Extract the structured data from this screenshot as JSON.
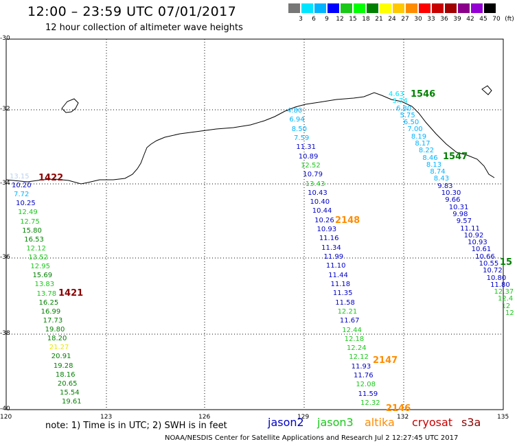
{
  "header": {
    "title": "12:00 – 23:59 UTC 07/01/2017",
    "subtitle": "12 hour collection of altimeter wave heights"
  },
  "color_scale": {
    "labels": [
      "3",
      "6",
      "9",
      "12",
      "15",
      "18",
      "21",
      "24",
      "27",
      "30",
      "33",
      "36",
      "39",
      "42",
      "45",
      "70",
      "(ft)"
    ],
    "colors": [
      "#777777",
      "#00e5ff",
      "#00b4ff",
      "#0000ff",
      "#19c819",
      "#00ff00",
      "#008000",
      "#ffff00",
      "#ffc800",
      "#ff8c00",
      "#ff0000",
      "#c80000",
      "#a00000",
      "#8b008b",
      "#9400d3",
      "#000000"
    ]
  },
  "map": {
    "lat_labels": [
      "-30",
      "-32",
      "-34",
      "-36",
      "-38",
      "-40"
    ],
    "lon_labels": [
      "120",
      "123",
      "126",
      "129",
      "132",
      "135"
    ]
  },
  "tracks": [
    {
      "color": "#8b0000",
      "id": "1422",
      "labels": [
        {
          "t": "13.15",
          "c": "#bcd2ee"
        },
        {
          "t": "10.20",
          "c": "#0000c8"
        },
        {
          "t": "7.72",
          "c": "#00b4ff"
        },
        {
          "t": "10.25",
          "c": "#0000c8"
        },
        {
          "t": "12.49",
          "c": "#19c819"
        },
        {
          "t": "12.75",
          "c": "#19c819"
        },
        {
          "t": "15.80",
          "c": "#008000"
        },
        {
          "t": "16.53",
          "c": "#008000"
        },
        {
          "t": "12.12",
          "c": "#19c819"
        },
        {
          "t": "13.52",
          "c": "#19c819"
        },
        {
          "t": "12.95",
          "c": "#19c819"
        },
        {
          "t": "15.69",
          "c": "#008000"
        },
        {
          "t": "13.83",
          "c": "#19c819"
        },
        {
          "t": "13.78",
          "c": "#19c819"
        },
        {
          "t": "16.25",
          "c": "#008000"
        },
        {
          "t": "16.99",
          "c": "#008000"
        },
        {
          "t": "17.73",
          "c": "#008000"
        },
        {
          "t": "19.80",
          "c": "#008000"
        },
        {
          "t": "18.20",
          "c": "#008000"
        },
        {
          "t": "21.27",
          "c": "#e8e800"
        },
        {
          "t": "20.91",
          "c": "#008000"
        },
        {
          "t": "19.28",
          "c": "#008000"
        },
        {
          "t": "18.16",
          "c": "#008000"
        },
        {
          "t": "20.65",
          "c": "#008000"
        },
        {
          "t": "15.54",
          "c": "#008000"
        },
        {
          "t": "19.61",
          "c": "#008000"
        }
      ],
      "ids": [
        {
          "t": "1422",
          "c": "#8b0000"
        },
        {
          "t": "1421",
          "c": "#8b0000"
        }
      ]
    },
    {
      "color": "#0000c8",
      "labels": [
        {
          "t": "4.80",
          "c": "#00b4ff"
        },
        {
          "t": "6.94",
          "c": "#00b4ff"
        },
        {
          "t": "8.50",
          "c": "#00b4ff"
        },
        {
          "t": "7.59",
          "c": "#00b4ff"
        },
        {
          "t": "11.31",
          "c": "#0000c8"
        },
        {
          "t": "10.89",
          "c": "#0000c8"
        },
        {
          "t": "12.52",
          "c": "#19c819"
        },
        {
          "t": "10.79",
          "c": "#0000c8"
        },
        {
          "t": "13.43",
          "c": "#19c819"
        },
        {
          "t": "10.43",
          "c": "#0000c8"
        },
        {
          "t": "10.40",
          "c": "#0000c8"
        },
        {
          "t": "10.44",
          "c": "#0000c8"
        },
        {
          "t": "10.26",
          "c": "#0000c8"
        },
        {
          "t": "10.93",
          "c": "#0000c8"
        },
        {
          "t": "11.16",
          "c": "#0000c8"
        },
        {
          "t": "11.34",
          "c": "#0000c8"
        },
        {
          "t": "11.99",
          "c": "#0000c8"
        },
        {
          "t": "11.10",
          "c": "#0000c8"
        },
        {
          "t": "11.44",
          "c": "#0000c8"
        },
        {
          "t": "11.18",
          "c": "#0000c8"
        },
        {
          "t": "11.35",
          "c": "#0000c8"
        },
        {
          "t": "11.58",
          "c": "#0000c8"
        },
        {
          "t": "12.21",
          "c": "#19c819"
        },
        {
          "t": "11.67",
          "c": "#0000c8"
        },
        {
          "t": "12.44",
          "c": "#19c819"
        },
        {
          "t": "12.18",
          "c": "#19c819"
        },
        {
          "t": "12.24",
          "c": "#19c819"
        },
        {
          "t": "12.12",
          "c": "#19c819"
        },
        {
          "t": "11.93",
          "c": "#0000c8"
        },
        {
          "t": "11.76",
          "c": "#0000c8"
        },
        {
          "t": "12.08",
          "c": "#19c819"
        },
        {
          "t": "11.59",
          "c": "#0000c8"
        },
        {
          "t": "12.32",
          "c": "#19c819"
        }
      ],
      "ids": [
        {
          "t": "2148",
          "c": "#ff8c00"
        },
        {
          "t": "2147",
          "c": "#ff8c00"
        },
        {
          "t": "2146",
          "c": "#ff8c00"
        }
      ]
    },
    {
      "color": "#00b4ff",
      "labels": [
        {
          "t": "4.63",
          "c": "#00e5ff"
        },
        {
          "t": "3.74",
          "c": "#00e5ff"
        },
        {
          "t": "6.80",
          "c": "#00b4ff"
        },
        {
          "t": "5.75",
          "c": "#00b4ff"
        },
        {
          "t": "6.50",
          "c": "#00b4ff"
        },
        {
          "t": "7.00",
          "c": "#00b4ff"
        },
        {
          "t": "8.19",
          "c": "#00b4ff"
        },
        {
          "t": "8.17",
          "c": "#00b4ff"
        },
        {
          "t": "8.22",
          "c": "#00b4ff"
        },
        {
          "t": "8.46",
          "c": "#00b4ff"
        },
        {
          "t": "8.13",
          "c": "#00b4ff"
        },
        {
          "t": "8.74",
          "c": "#00b4ff"
        },
        {
          "t": "8.43",
          "c": "#00b4ff"
        },
        {
          "t": "9.83",
          "c": "#0000c8"
        },
        {
          "t": "10.30",
          "c": "#0000c8"
        },
        {
          "t": "9.66",
          "c": "#0000c8"
        },
        {
          "t": "10.31",
          "c": "#0000c8"
        },
        {
          "t": "9.98",
          "c": "#0000c8"
        },
        {
          "t": "9.57",
          "c": "#0000c8"
        },
        {
          "t": "11.11",
          "c": "#0000c8"
        },
        {
          "t": "10.92",
          "c": "#0000c8"
        },
        {
          "t": "10.93",
          "c": "#0000c8"
        },
        {
          "t": "10.61",
          "c": "#0000c8"
        },
        {
          "t": "10.66",
          "c": "#0000c8"
        },
        {
          "t": "10.55",
          "c": "#0000c8"
        },
        {
          "t": "10.72",
          "c": "#0000c8"
        },
        {
          "t": "10.80",
          "c": "#0000c8"
        },
        {
          "t": "11.80",
          "c": "#0000c8"
        },
        {
          "t": "12.37",
          "c": "#19c819"
        },
        {
          "t": "12.4",
          "c": "#19c819"
        },
        {
          "t": "12",
          "c": "#19c819"
        },
        {
          "t": "12",
          "c": "#19c819"
        }
      ],
      "ids": [
        {
          "t": "1546",
          "c": "#008000"
        },
        {
          "t": "1547",
          "c": "#008000"
        },
        {
          "t": "15",
          "c": "#008000"
        }
      ]
    }
  ],
  "legend": [
    {
      "t": "jason2",
      "c": "#0000c8"
    },
    {
      "t": "jason3",
      "c": "#19c819"
    },
    {
      "t": "altika",
      "c": "#ff8c00"
    },
    {
      "t": "cryosat",
      "c": "#c80000"
    },
    {
      "t": "s3a",
      "c": "#8b0000"
    }
  ],
  "note": "note:  1) Time is in UTC;  2) SWH is in feet",
  "footer": "NOAA/NESDIS Center for Satellite Applications and Research    Jul  2 12:27:45 UTC 2017"
}
